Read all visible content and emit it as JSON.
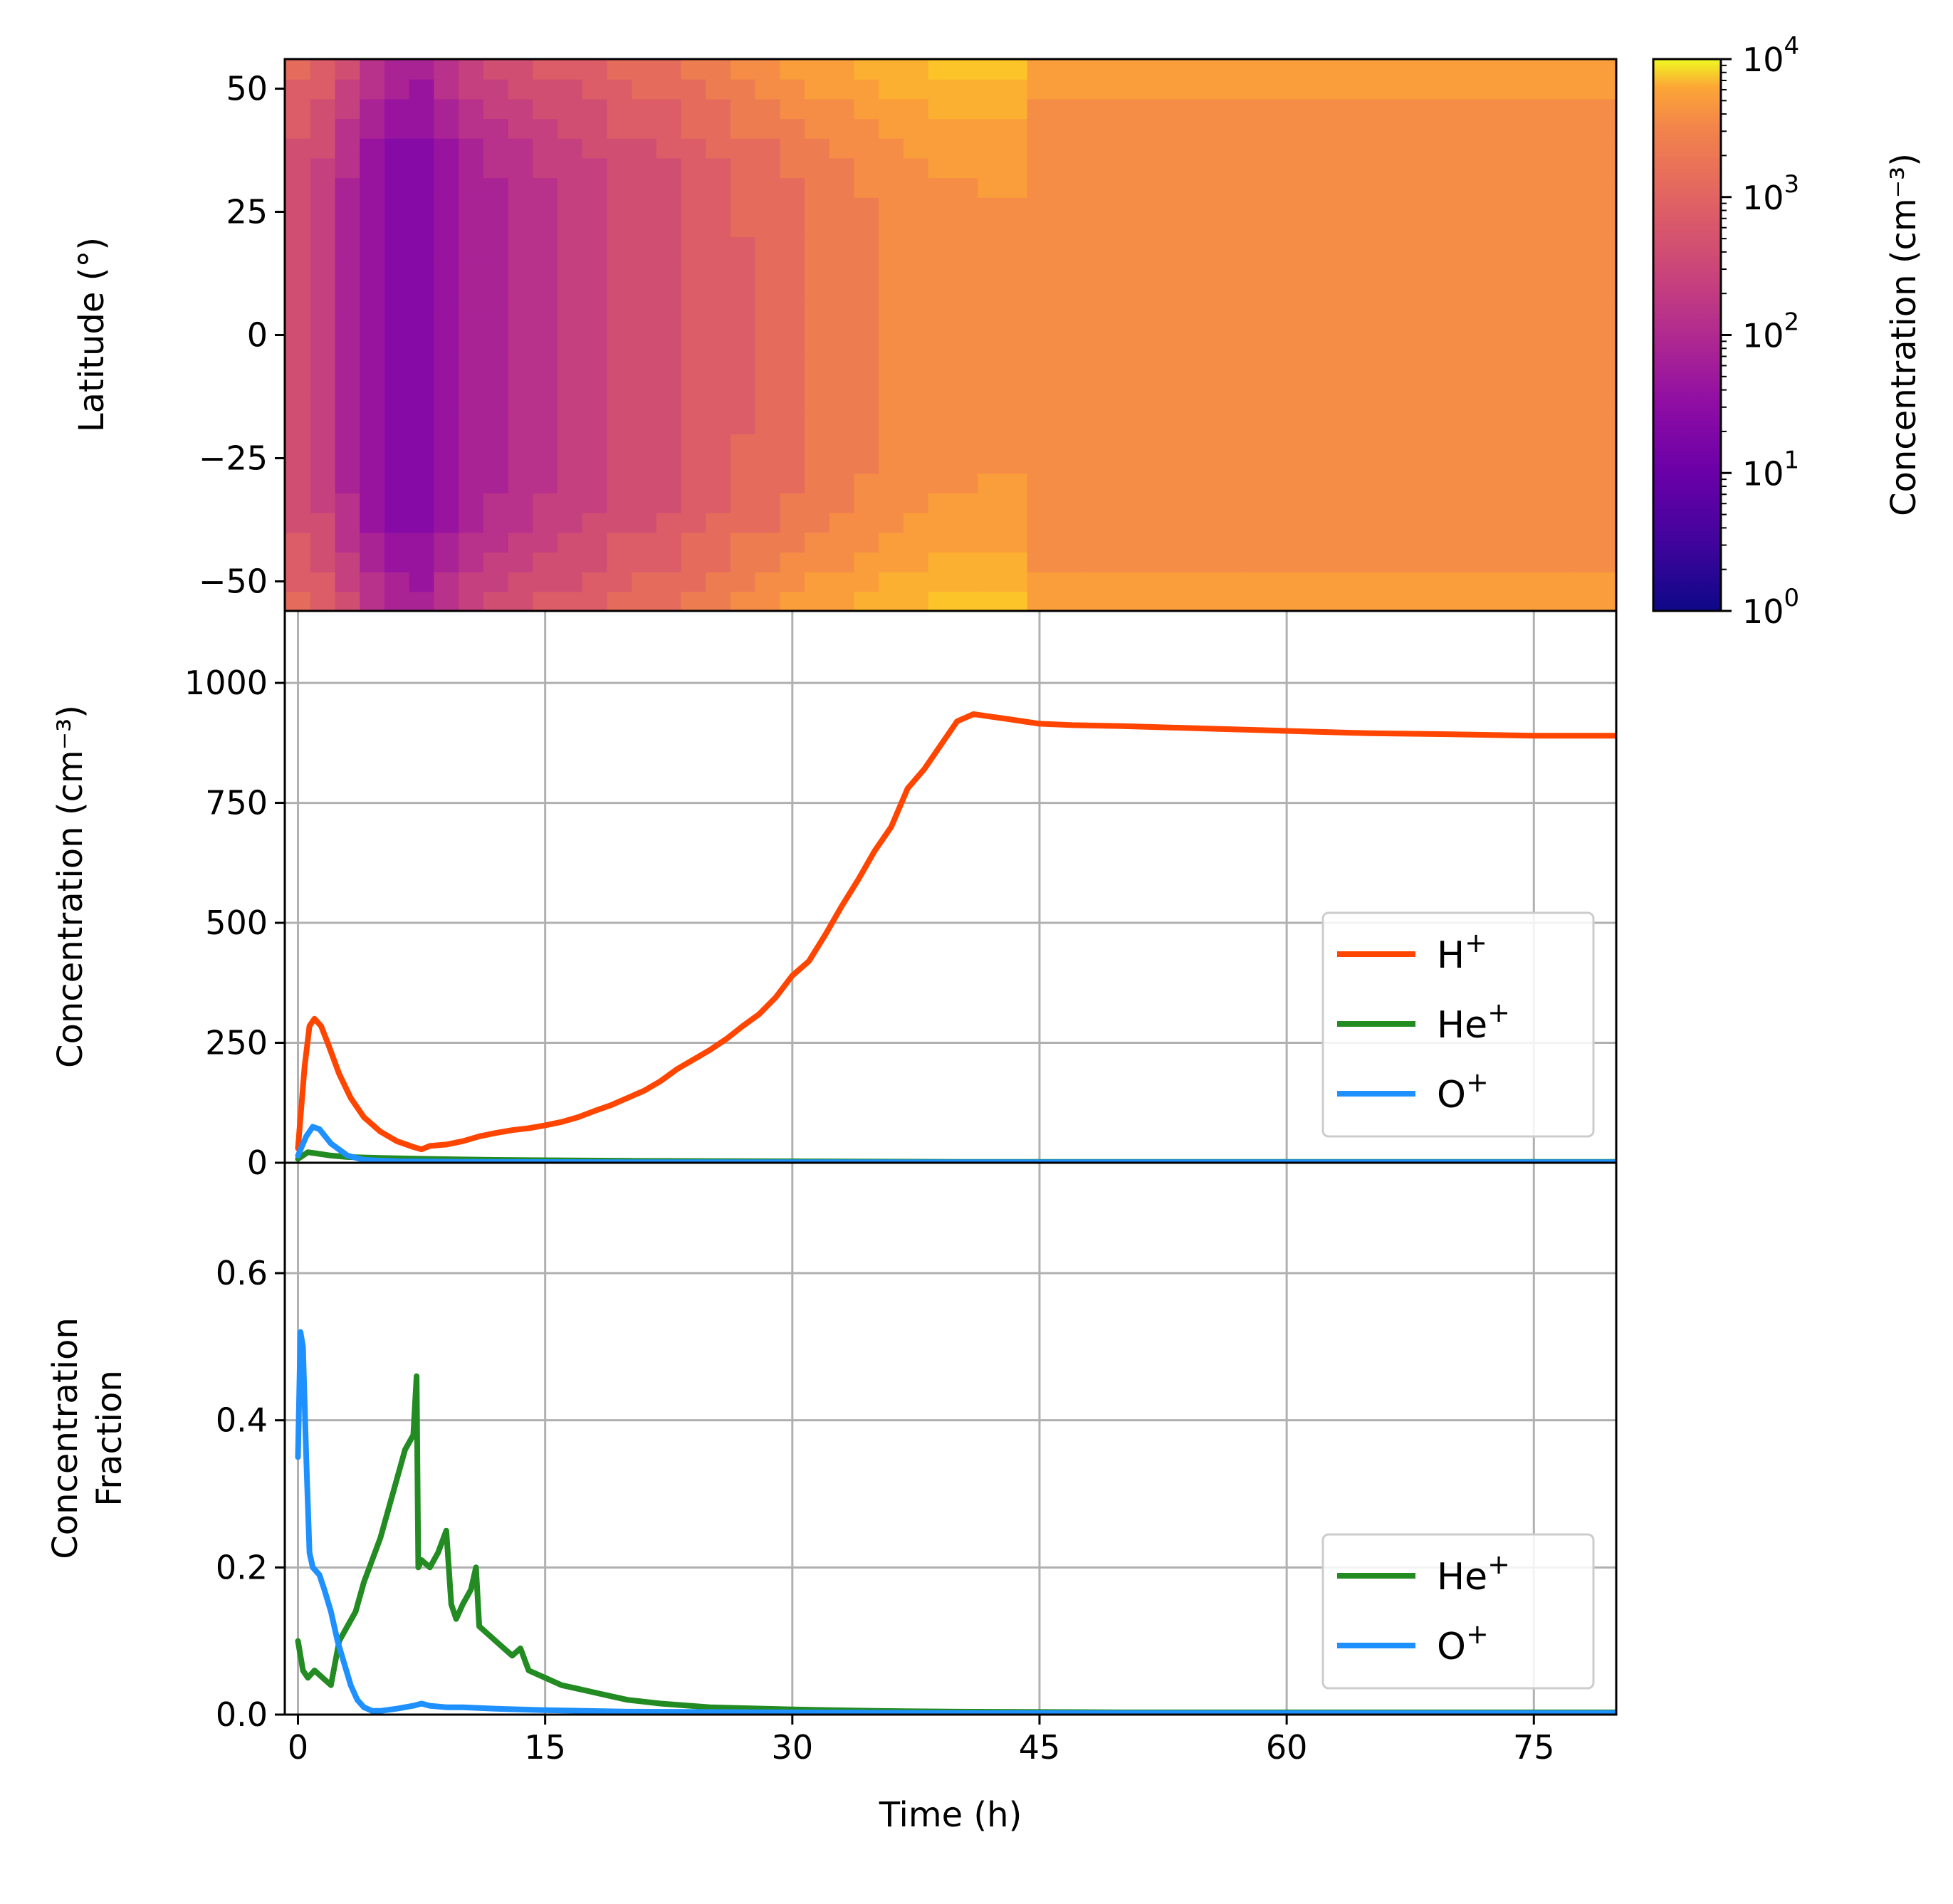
{
  "chart_data": [
    {
      "type": "heatmap",
      "ylabel": "Latitude (°)",
      "xlim": [
        -0.8,
        80
      ],
      "ylim": [
        -56,
        56
      ],
      "yticks": [
        -50,
        -25,
        0,
        25,
        50
      ],
      "ytick_labels": [
        "−50",
        "−25",
        "0",
        "25",
        "50"
      ],
      "colormap": "plasma",
      "colorbar": {
        "label": "Concentration (cm⁻³)",
        "scale": "log",
        "range": [
          1,
          10000
        ],
        "ticks": [
          {
            "value": 1,
            "base": "10",
            "exp": "0"
          },
          {
            "value": 10,
            "base": "10",
            "exp": "1"
          },
          {
            "value": 100,
            "base": "10",
            "exp": "2"
          },
          {
            "value": 1000,
            "base": "10",
            "exp": "3"
          },
          {
            "value": 10000,
            "base": "10",
            "exp": "4"
          }
        ]
      },
      "time_h": [
        0,
        1.5,
        3,
        4.5,
        6,
        7.5,
        9,
        10.5,
        12,
        13.5,
        15,
        16.5,
        18,
        19.5,
        21,
        22.5,
        24,
        25.5,
        27,
        28.5,
        30,
        31.5,
        33,
        34.5,
        36,
        37.5,
        39,
        40.5,
        42,
        43.5,
        45,
        50,
        55,
        60,
        65,
        70,
        75,
        80
      ],
      "equator_log10_conc": [
        2.0,
        1.9,
        1.55,
        1.25,
        1.05,
        1.0,
        1.25,
        1.45,
        1.55,
        1.65,
        1.75,
        1.8,
        1.9,
        2.0,
        2.05,
        2.1,
        2.2,
        2.3,
        2.4,
        2.45,
        2.55,
        2.62,
        2.7,
        2.77,
        2.85,
        2.9,
        2.93,
        2.95,
        2.96,
        2.96,
        2.95,
        2.95,
        2.95,
        2.95,
        2.95,
        2.95,
        2.95,
        2.95
      ]
    },
    {
      "type": "line",
      "ylabel": "Concentration (cm⁻³)",
      "xlim": [
        -0.8,
        80
      ],
      "ylim": [
        0,
        1150
      ],
      "yticks": [
        0,
        250,
        500,
        750,
        1000
      ],
      "ytick_labels": [
        "0",
        "250",
        "500",
        "750",
        "1000"
      ],
      "grid": true,
      "legend_position": "lower-right",
      "series": [
        {
          "name_base": "H",
          "name_sup": "+",
          "color": "#ff4500",
          "x": [
            0,
            0.4,
            0.7,
            1.0,
            1.4,
            1.8,
            2.5,
            3.2,
            4,
            5,
            6,
            7,
            7.5,
            8,
            9,
            10,
            11,
            12,
            13,
            14,
            15,
            16,
            17,
            18,
            19,
            20,
            21,
            22,
            23,
            24,
            25,
            26,
            27,
            28,
            29,
            30,
            31,
            32,
            33,
            34,
            35,
            36,
            37,
            38,
            39,
            40,
            41,
            42,
            43,
            44,
            45,
            47,
            50,
            55,
            60,
            65,
            70,
            75,
            80
          ],
          "y": [
            30,
            200,
            285,
            300,
            285,
            250,
            185,
            135,
            95,
            65,
            45,
            33,
            28,
            35,
            38,
            45,
            55,
            62,
            68,
            72,
            78,
            85,
            95,
            108,
            120,
            135,
            150,
            170,
            195,
            215,
            235,
            258,
            285,
            310,
            345,
            390,
            420,
            475,
            535,
            590,
            650,
            700,
            780,
            820,
            870,
            920,
            935,
            930,
            925,
            920,
            915,
            912,
            910,
            905,
            900,
            895,
            893,
            890,
            890
          ]
        },
        {
          "name_base": "He",
          "name_sup": "+",
          "color": "#228b22",
          "x": [
            0,
            0.6,
            1,
            2,
            3,
            5,
            8,
            12,
            20,
            30,
            40,
            60,
            80
          ],
          "y": [
            8,
            22,
            20,
            15,
            12,
            10,
            8,
            6,
            4,
            3,
            2,
            2,
            2
          ]
        },
        {
          "name_base": "O",
          "name_sup": "+",
          "color": "#1e90ff",
          "x": [
            0,
            0.5,
            0.9,
            1.3,
            2,
            3,
            4,
            6,
            10,
            20,
            40,
            80
          ],
          "y": [
            15,
            55,
            75,
            70,
            40,
            15,
            6,
            3,
            2,
            1,
            1,
            1
          ]
        }
      ]
    },
    {
      "type": "line",
      "ylabel_lines": [
        "Concentration",
        "Fraction"
      ],
      "xlabel": "Time (h)",
      "xlim": [
        -0.8,
        80
      ],
      "ylim": [
        0,
        0.75
      ],
      "xticks": [
        0,
        15,
        30,
        45,
        60,
        75
      ],
      "xtick_labels": [
        "0",
        "15",
        "30",
        "45",
        "60",
        "75"
      ],
      "yticks": [
        0.0,
        0.2,
        0.4,
        0.6
      ],
      "ytick_labels": [
        "0.0",
        "0.2",
        "0.4",
        "0.6"
      ],
      "grid": true,
      "legend_position": "lower-right",
      "series": [
        {
          "name_base": "He",
          "name_sup": "+",
          "color": "#228b22",
          "x": [
            0,
            0.3,
            0.6,
            1,
            1.5,
            2,
            2.5,
            3,
            3.5,
            4,
            4.5,
            5,
            5.5,
            6,
            6.5,
            7,
            7.2,
            7.3,
            7.5,
            8,
            8.5,
            9,
            9.3,
            9.6,
            10,
            10.5,
            10.8,
            11,
            12,
            13,
            13.5,
            14,
            15,
            16,
            17,
            18,
            19,
            20,
            22,
            25,
            30,
            35,
            40,
            50,
            60,
            70,
            80
          ],
          "y": [
            0.1,
            0.06,
            0.05,
            0.06,
            0.05,
            0.04,
            0.1,
            0.12,
            0.14,
            0.18,
            0.21,
            0.24,
            0.28,
            0.32,
            0.36,
            0.38,
            0.46,
            0.2,
            0.21,
            0.2,
            0.22,
            0.25,
            0.15,
            0.13,
            0.15,
            0.17,
            0.2,
            0.12,
            0.1,
            0.08,
            0.09,
            0.06,
            0.05,
            0.04,
            0.035,
            0.03,
            0.025,
            0.02,
            0.015,
            0.01,
            0.007,
            0.005,
            0.004,
            0.003,
            0.003,
            0.003,
            0.003
          ]
        },
        {
          "name_base": "O",
          "name_sup": "+",
          "color": "#1e90ff",
          "x": [
            0,
            0.15,
            0.3,
            0.5,
            0.7,
            0.9,
            1.3,
            1.6,
            2,
            2.4,
            2.8,
            3.2,
            3.6,
            4,
            4.5,
            5,
            6,
            7,
            7.5,
            8,
            9,
            10,
            12,
            15,
            20,
            30,
            40,
            60,
            80
          ],
          "y": [
            0.35,
            0.52,
            0.5,
            0.35,
            0.22,
            0.2,
            0.19,
            0.17,
            0.14,
            0.1,
            0.07,
            0.04,
            0.02,
            0.01,
            0.005,
            0.005,
            0.008,
            0.012,
            0.015,
            0.012,
            0.01,
            0.01,
            0.008,
            0.006,
            0.004,
            0.003,
            0.002,
            0.002,
            0.002
          ]
        }
      ]
    }
  ]
}
